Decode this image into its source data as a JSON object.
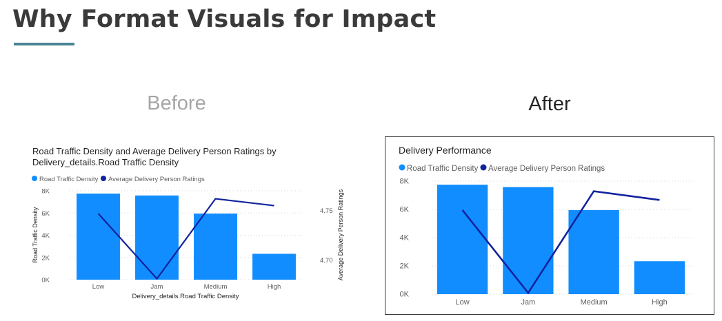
{
  "page": {
    "title": "Why Format Visuals for Impact",
    "before_label": "Before",
    "after_label": "After"
  },
  "colors": {
    "bar": "#118DFF",
    "line": "#12239E",
    "axis_text": "#605E5C",
    "title_text": "#252423",
    "accent_underline": "#4a8595"
  },
  "chart_data": [
    {
      "type": "bar",
      "title": "Road Traffic Density and Average Delivery Person Ratings by Delivery_details.Road Traffic Density",
      "title_lines": [
        "Road Traffic Density and Average Delivery Person Ratings by",
        "Delivery_details.Road Traffic Density"
      ],
      "legend": [
        "Road Traffic Density",
        "Average Delivery Person Ratings"
      ],
      "legend_position": "top-left",
      "categories": [
        "Low",
        "Jam",
        "Medium",
        "High"
      ],
      "series": [
        {
          "name": "Road Traffic Density",
          "type": "bar",
          "axis": "left",
          "values": [
            7750,
            7580,
            5950,
            2330
          ]
        },
        {
          "name": "Average Delivery Person Ratings",
          "type": "line",
          "axis": "right",
          "values": [
            4.747,
            4.681,
            4.762,
            4.755
          ]
        }
      ],
      "xlabel": "Delivery_details.Road Traffic Density",
      "ylabel": "Road Traffic Density",
      "y2label": "Average Delivery Person Ratings",
      "ylim": [
        0,
        8000
      ],
      "yticks": [
        "0K",
        "2K",
        "4K",
        "6K",
        "8K"
      ],
      "y2lim": [
        4.68,
        4.77
      ],
      "y2ticks": [
        "4.70",
        "4.75"
      ],
      "grid": true
    },
    {
      "type": "bar",
      "title": "Delivery Performance",
      "legend": [
        "Road Traffic Density",
        "Average Delivery Person Ratings"
      ],
      "legend_position": "top-left",
      "categories": [
        "Low",
        "Jam",
        "Medium",
        "High"
      ],
      "series": [
        {
          "name": "Road Traffic Density",
          "type": "bar",
          "axis": "left",
          "values": [
            7750,
            7580,
            5950,
            2330
          ]
        },
        {
          "name": "Average Delivery Person Ratings",
          "type": "line",
          "axis": "right",
          "values": [
            4.747,
            4.681,
            4.762,
            4.755
          ]
        }
      ],
      "xlabel": "",
      "ylabel": "",
      "ylim": [
        0,
        8000
      ],
      "yticks": [
        "0K",
        "2K",
        "4K",
        "6K",
        "8K"
      ],
      "y2lim": [
        4.68,
        4.77
      ],
      "grid": true
    }
  ]
}
